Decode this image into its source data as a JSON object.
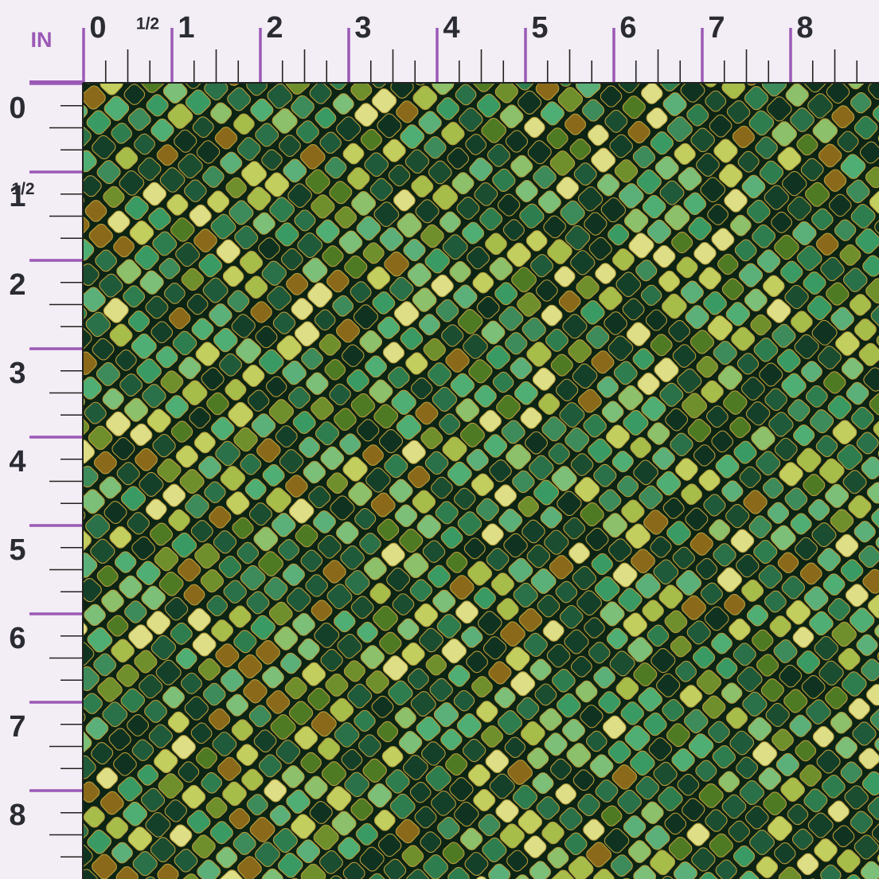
{
  "ruler": {
    "unit": "IN",
    "top_labels": [
      "0",
      "1/2",
      "1",
      "2",
      "3",
      "4",
      "5",
      "6",
      "7",
      "8"
    ],
    "left_labels": [
      "0",
      "1/2",
      "1",
      "2",
      "3",
      "4",
      "5",
      "6",
      "7",
      "8"
    ]
  }
}
